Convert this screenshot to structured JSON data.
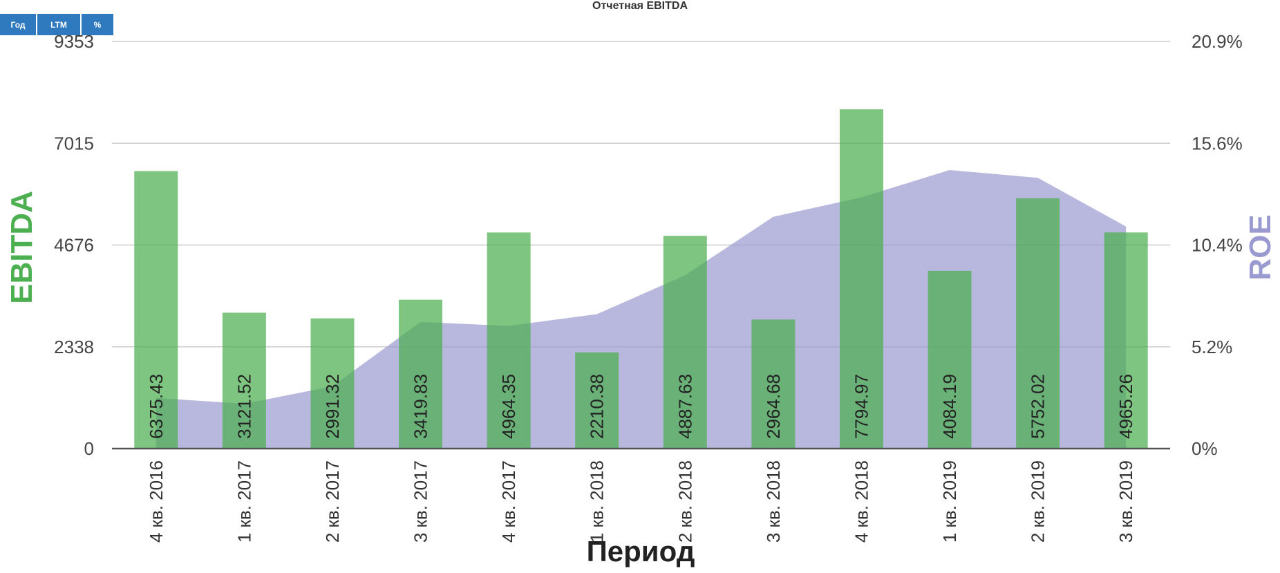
{
  "title": "Отчетная EBITDA",
  "toolbar": {
    "year_label": "Год",
    "ltm_label": "LTM",
    "percent_label": "%"
  },
  "colors": {
    "bar": "#4caf50",
    "area": "#9a9ad0",
    "button": "#2f79bf",
    "grid": "#cccccc"
  },
  "chart_data": {
    "type": "bar",
    "title": "Отчетная EBITDA",
    "xlabel": "Период",
    "ylabel": "EBITDA",
    "y2label": "ROE",
    "categories": [
      "4 кв. 2016",
      "1 кв. 2017",
      "2 кв. 2017",
      "3 кв. 2017",
      "4 кв. 2017",
      "1 кв. 2018",
      "2 кв. 2018",
      "3 кв. 2018",
      "4 кв. 2018",
      "1 кв. 2019",
      "2 кв. 2019",
      "3 кв. 2019"
    ],
    "series": [
      {
        "name": "EBITDA",
        "type": "bar",
        "axis": "left",
        "values": [
          6375.43,
          3121.52,
          2991.32,
          3419.83,
          4964.35,
          2210.38,
          4887.63,
          2964.68,
          7794.97,
          4084.19,
          5752.02,
          4965.26
        ],
        "labels": [
          "6375.43",
          "3121.52",
          "2991.32",
          "3419.83",
          "4964.35",
          "2210.38",
          "4887.63",
          "2964.68",
          "7794.97",
          "4084.19",
          "5752.02",
          "4965.26"
        ]
      },
      {
        "name": "ROE",
        "type": "area",
        "axis": "right",
        "values": [
          2.6,
          2.3,
          3.2,
          6.5,
          6.3,
          6.9,
          8.9,
          11.9,
          12.9,
          14.3,
          13.9,
          11.4
        ]
      }
    ],
    "ylim": [
      0,
      9353
    ],
    "y_ticks": [
      "0",
      "2338",
      "4676",
      "7015",
      "9353"
    ],
    "y2lim": [
      0,
      20.9
    ],
    "y2_ticks": [
      "0%",
      "5.2%",
      "10.4%",
      "15.6%",
      "20.9%"
    ],
    "grid": true
  }
}
